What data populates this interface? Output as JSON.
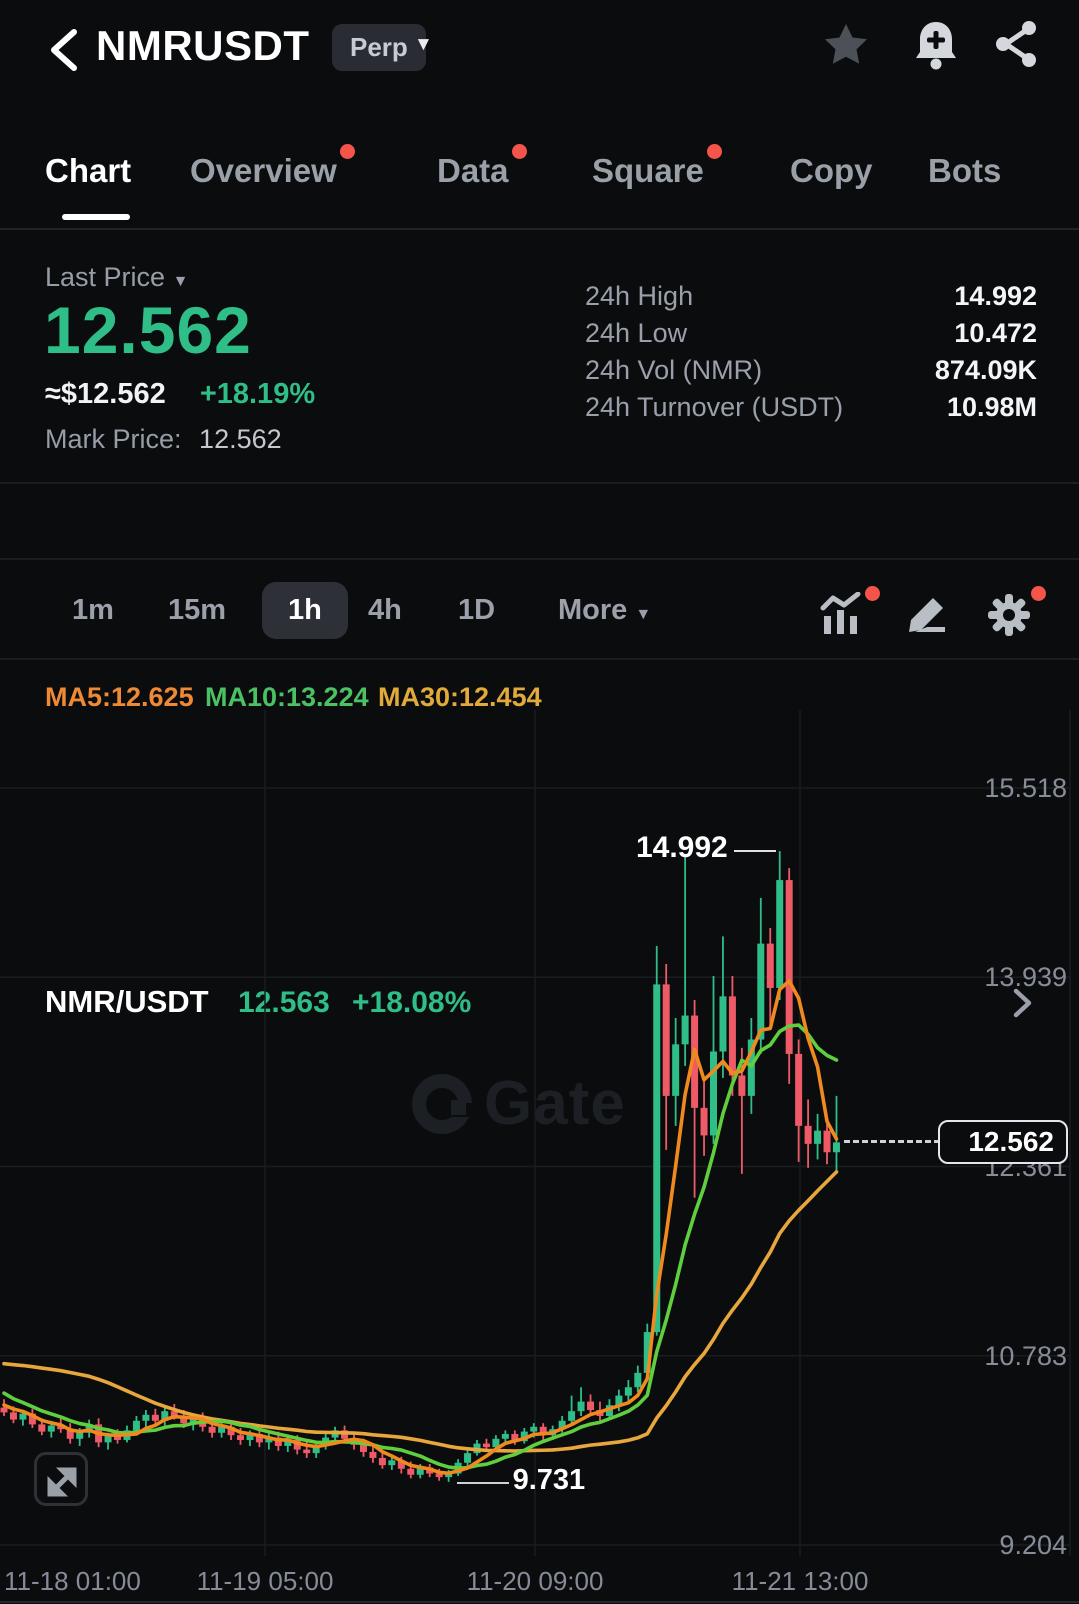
{
  "header": {
    "title": "NMRUSDT",
    "badge": "Perp"
  },
  "tabs": [
    {
      "label": "Chart",
      "active": true,
      "dot": false
    },
    {
      "label": "Overview",
      "active": false,
      "dot": true
    },
    {
      "label": "Data",
      "active": false,
      "dot": true
    },
    {
      "label": "Square",
      "active": false,
      "dot": true
    },
    {
      "label": "Copy",
      "active": false,
      "dot": false
    },
    {
      "label": "Bots",
      "active": false,
      "dot": false
    }
  ],
  "price_panel": {
    "selector_label": "Last Price",
    "last_price": "12.562",
    "approx": "≈$12.562",
    "change": "+18.19%",
    "mark_label": "Mark Price:",
    "mark_value": "12.562"
  },
  "stats": [
    {
      "label": "24h High",
      "value": "14.992"
    },
    {
      "label": "24h Low",
      "value": "10.472"
    },
    {
      "label": "24h Vol (NMR)",
      "value": "874.09K"
    },
    {
      "label": "24h Turnover (USDT)",
      "value": "10.98M"
    }
  ],
  "pair_row": {
    "pair": "NMR/USDT",
    "price": "12.563",
    "change": "+18.08%"
  },
  "toolbar": {
    "timeframes": [
      "1m",
      "15m",
      "1h",
      "4h",
      "1D"
    ],
    "selected": "1h",
    "more_label": "More"
  },
  "watermark_text": "Gate",
  "colors": {
    "up": "#2fbe87",
    "down": "#ef5a67",
    "grid": "#1a1c21",
    "accent_green": "#2fbe87",
    "red_dot": "#f4544a"
  },
  "chart_data": {
    "type": "candlestick",
    "interval": "1h",
    "ma_labels": [
      {
        "text": "MA5:12.625",
        "color": "#ee8a35"
      },
      {
        "text": "MA10:13.224",
        "color": "#4bc164"
      },
      {
        "text": "MA30:12.454",
        "color": "#e2a93b"
      }
    ],
    "ma_lines": [
      {
        "period": 30,
        "color": "#e8a73c"
      },
      {
        "period": 10,
        "color": "#5fce3f"
      },
      {
        "period": 5,
        "color": "#f08a1e"
      }
    ],
    "y_ticks": [
      15.518,
      13.939,
      12.361,
      10.783,
      9.204
    ],
    "x_labels": [
      "11-18 01:00",
      "11-19 05:00",
      "11-20 09:00",
      "11-21 13:00"
    ],
    "current_price": 12.562,
    "current_price_label": "12.562",
    "high_annotation": "14.992",
    "low_annotation": "9.731",
    "ma_seed_history": [
      10.5,
      10.5,
      10.5,
      10.5,
      10.5,
      10.5,
      10.52,
      10.55,
      10.6,
      10.7,
      10.82,
      10.95,
      11.1,
      11.2,
      11.28,
      11.3,
      11.25,
      11.15,
      11.05,
      10.95,
      10.85,
      10.72,
      10.62,
      10.55,
      10.5,
      10.46,
      10.42,
      10.4,
      10.38,
      10.35
    ],
    "ohlc": [
      [
        10.35,
        10.42,
        10.28,
        10.31
      ],
      [
        10.31,
        10.36,
        10.22,
        10.25
      ],
      [
        10.25,
        10.33,
        10.2,
        10.3
      ],
      [
        10.3,
        10.34,
        10.18,
        10.21
      ],
      [
        10.21,
        10.26,
        10.12,
        10.15
      ],
      [
        10.15,
        10.24,
        10.1,
        10.2
      ],
      [
        10.2,
        10.28,
        10.14,
        10.17
      ],
      [
        10.17,
        10.22,
        10.05,
        10.09
      ],
      [
        10.09,
        10.18,
        10.03,
        10.14
      ],
      [
        10.14,
        10.25,
        10.1,
        10.21
      ],
      [
        10.21,
        10.26,
        10.02,
        10.06
      ],
      [
        10.06,
        10.14,
        10.0,
        10.11
      ],
      [
        10.11,
        10.17,
        10.05,
        10.08
      ],
      [
        10.08,
        10.2,
        10.06,
        10.16
      ],
      [
        10.16,
        10.28,
        10.12,
        10.24
      ],
      [
        10.24,
        10.33,
        10.18,
        10.29
      ],
      [
        10.29,
        10.34,
        10.21,
        10.24
      ],
      [
        10.24,
        10.36,
        10.2,
        10.32
      ],
      [
        10.32,
        10.38,
        10.25,
        10.28
      ],
      [
        10.28,
        10.33,
        10.18,
        10.22
      ],
      [
        10.22,
        10.3,
        10.16,
        10.26
      ],
      [
        10.26,
        10.31,
        10.15,
        10.19
      ],
      [
        10.19,
        10.25,
        10.1,
        10.14
      ],
      [
        10.14,
        10.23,
        10.1,
        10.19
      ],
      [
        10.19,
        10.24,
        10.08,
        10.12
      ],
      [
        10.12,
        10.18,
        10.04,
        10.08
      ],
      [
        10.08,
        10.16,
        10.03,
        10.13
      ],
      [
        10.13,
        10.18,
        10.02,
        10.06
      ],
      [
        10.06,
        10.14,
        10.0,
        10.1
      ],
      [
        10.1,
        10.15,
        9.99,
        10.03
      ],
      [
        10.03,
        10.12,
        9.98,
        10.08
      ],
      [
        10.08,
        10.12,
        9.96,
        10.0
      ],
      [
        10.0,
        10.08,
        9.93,
        9.97
      ],
      [
        9.97,
        10.07,
        9.93,
        10.04
      ],
      [
        10.04,
        10.14,
        10.0,
        10.1
      ],
      [
        10.1,
        10.19,
        10.05,
        10.16
      ],
      [
        10.16,
        10.2,
        10.06,
        10.09
      ],
      [
        10.09,
        10.15,
        10.0,
        10.04
      ],
      [
        10.04,
        10.09,
        9.94,
        9.98
      ],
      [
        9.98,
        10.04,
        9.89,
        9.93
      ],
      [
        9.93,
        9.99,
        9.84,
        9.87
      ],
      [
        9.87,
        9.95,
        9.83,
        9.91
      ],
      [
        9.91,
        9.94,
        9.8,
        9.84
      ],
      [
        9.84,
        9.9,
        9.76,
        9.79
      ],
      [
        9.79,
        9.88,
        9.76,
        9.85
      ],
      [
        9.85,
        9.88,
        9.77,
        9.8
      ],
      [
        9.8,
        9.84,
        9.74,
        9.77
      ],
      [
        9.77,
        9.83,
        9.731,
        9.8
      ],
      [
        9.8,
        9.92,
        9.78,
        9.89
      ],
      [
        9.89,
        10.0,
        9.86,
        9.97
      ],
      [
        9.97,
        10.08,
        9.95,
        10.05
      ],
      [
        10.05,
        10.09,
        9.98,
        10.02
      ],
      [
        10.02,
        10.12,
        9.99,
        10.09
      ],
      [
        10.09,
        10.16,
        10.05,
        10.13
      ],
      [
        10.13,
        10.16,
        10.04,
        10.07
      ],
      [
        10.07,
        10.18,
        10.05,
        10.15
      ],
      [
        10.15,
        10.22,
        10.1,
        10.19
      ],
      [
        10.19,
        10.22,
        10.08,
        10.12
      ],
      [
        10.12,
        10.2,
        10.08,
        10.17
      ],
      [
        10.17,
        10.28,
        10.14,
        10.24
      ],
      [
        10.24,
        10.45,
        10.2,
        10.32
      ],
      [
        10.32,
        10.52,
        10.28,
        10.4
      ],
      [
        10.4,
        10.46,
        10.28,
        10.33
      ],
      [
        10.33,
        10.4,
        10.24,
        10.28
      ],
      [
        10.28,
        10.42,
        10.25,
        10.37
      ],
      [
        10.37,
        10.5,
        10.32,
        10.45
      ],
      [
        10.45,
        10.58,
        10.4,
        10.52
      ],
      [
        10.52,
        10.7,
        10.48,
        10.64
      ],
      [
        10.64,
        11.05,
        10.6,
        10.98
      ],
      [
        10.98,
        14.2,
        10.95,
        13.88
      ],
      [
        13.88,
        14.05,
        12.5,
        12.95
      ],
      [
        12.95,
        13.6,
        12.7,
        13.38
      ],
      [
        13.38,
        14.95,
        13.2,
        13.62
      ],
      [
        13.62,
        13.75,
        12.1,
        12.85
      ],
      [
        12.85,
        13.1,
        12.45,
        12.62
      ],
      [
        12.62,
        13.95,
        12.55,
        13.32
      ],
      [
        13.32,
        14.28,
        13.1,
        13.78
      ],
      [
        13.78,
        13.95,
        12.95,
        13.12
      ],
      [
        13.12,
        13.35,
        12.3,
        12.95
      ],
      [
        12.95,
        13.6,
        12.8,
        13.42
      ],
      [
        13.42,
        14.6,
        13.3,
        14.22
      ],
      [
        14.22,
        14.35,
        13.55,
        13.85
      ],
      [
        13.85,
        14.992,
        13.75,
        14.75
      ],
      [
        14.75,
        14.85,
        13.05,
        13.3
      ],
      [
        13.3,
        13.42,
        12.4,
        12.7
      ],
      [
        12.7,
        12.92,
        12.35,
        12.55
      ],
      [
        12.55,
        12.8,
        12.42,
        12.66
      ],
      [
        12.66,
        12.74,
        12.38,
        12.48
      ],
      [
        12.48,
        12.95,
        12.3,
        12.562
      ]
    ]
  }
}
